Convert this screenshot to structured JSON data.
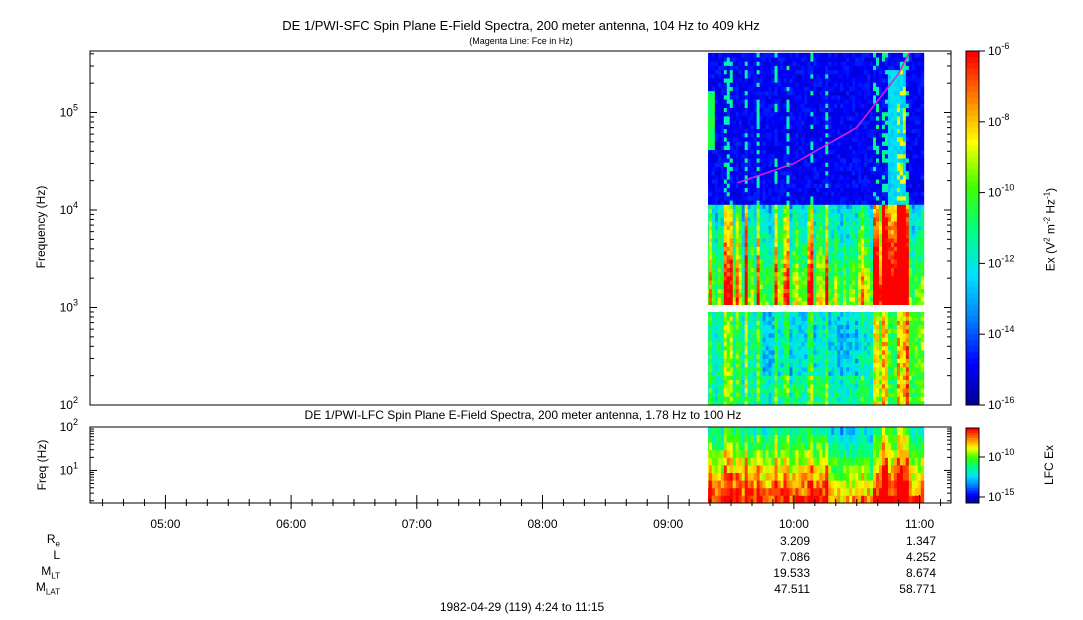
{
  "titles": {
    "main": "DE 1/PWI-SFC  Spin Plane E-Field Spectra, 200 meter antenna, 104 Hz to 409 kHz",
    "subtitle": "(Magenta Line: Fce in Hz)",
    "lower": "DE 1/PWI-LFC  Spin Plane E-Field Spectra, 200 meter antenna, 1.78 Hz to 100 Hz"
  },
  "axes": {
    "upper_ylabel": "Frequency (Hz)",
    "lower_ylabel": "Freq (Hz)",
    "upper_colorbar_label": "Ex (V2 m-2 Hz-1)",
    "lower_colorbar_label": "LFC Ex"
  },
  "ephemeris": {
    "row_labels": [
      "Re",
      "L",
      "MLT",
      "MLAT"
    ],
    "columns": [
      {
        "time": "10:00",
        "values": [
          "3.209",
          "7.086",
          "19.533",
          "47.511"
        ]
      },
      {
        "time": "11:00",
        "values": [
          "1.347",
          "4.252",
          "8.674",
          "58.771"
        ]
      }
    ]
  },
  "footer": "1982-04-29 (119) 4:24 to 11:15",
  "colors": {
    "fce_line": "#e020e0",
    "colormap": [
      "#00008c",
      "#0000ff",
      "#0080ff",
      "#00e0ff",
      "#00ff80",
      "#40ff00",
      "#ffff00",
      "#ff8000",
      "#ff0000"
    ]
  },
  "chart_data": [
    {
      "type": "heatmap",
      "title": "DE 1/PWI-SFC  Spin Plane E-Field Spectra, 200 meter antenna, 104 Hz to 409 kHz",
      "ylabel": "Frequency (Hz)",
      "yscale": "log",
      "ylim": [
        100,
        409000
      ],
      "yticks": [
        {
          "label": "10",
          "exp": "2"
        },
        {
          "label": "10",
          "exp": "3"
        },
        {
          "label": "10",
          "exp": "4"
        },
        {
          "label": "10",
          "exp": "5"
        }
      ],
      "x_time_range": [
        "04:24",
        "11:15"
      ],
      "data_time_range": [
        "09:18",
        "11:02"
      ],
      "gap_frequency_hz": [
        900,
        1050
      ],
      "colorbar": {
        "label": "Ex (V2 m-2 Hz-1)",
        "scale": "log",
        "range": [
          "1e-16",
          "1e-6"
        ],
        "ticks": [
          {
            "label": "10",
            "exp": "-6"
          },
          {
            "label": "10",
            "exp": "-8"
          },
          {
            "label": "10",
            "exp": "-10"
          },
          {
            "label": "10",
            "exp": "-12"
          },
          {
            "label": "10",
            "exp": "-14"
          },
          {
            "label": "10",
            "exp": "-16"
          }
        ]
      },
      "fce_line": {
        "label": "Fce in Hz",
        "points": [
          {
            "time": "09:33",
            "freq_hz": 19000
          },
          {
            "time": "10:00",
            "freq_hz": 30000
          },
          {
            "time": "10:30",
            "freq_hz": 70000
          },
          {
            "time": "10:50",
            "freq_hz": 250000
          },
          {
            "time": "10:55",
            "freq_hz": 409000
          }
        ]
      }
    },
    {
      "type": "heatmap",
      "title": "DE 1/PWI-LFC  Spin Plane E-Field Spectra, 200 meter antenna, 1.78 Hz to 100 Hz",
      "ylabel": "Freq (Hz)",
      "yscale": "log",
      "ylim": [
        1.78,
        100
      ],
      "yticks": [
        {
          "label": "10",
          "exp": "1"
        },
        {
          "label": "10",
          "exp": "2"
        }
      ],
      "data_time_range": [
        "09:18",
        "11:02"
      ],
      "colorbar": {
        "label": "LFC Ex",
        "scale": "log",
        "ticks": [
          {
            "label": "10",
            "exp": "-10"
          },
          {
            "label": "10",
            "exp": "-15"
          }
        ]
      }
    }
  ],
  "xaxis": {
    "tick_labels": [
      "05:00",
      "06:00",
      "07:00",
      "08:00",
      "09:00",
      "10:00",
      "11:00"
    ]
  }
}
